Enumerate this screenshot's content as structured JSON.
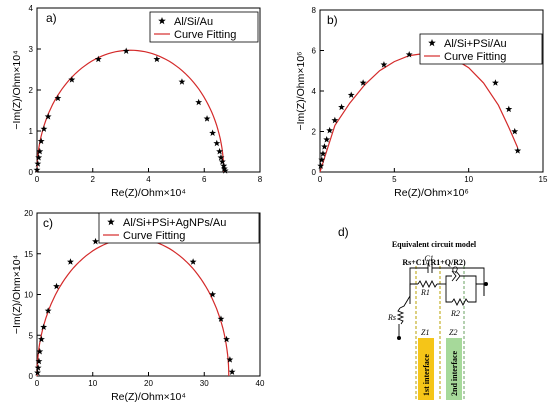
{
  "chart_data": [
    {
      "panel": "a)",
      "type": "scatter",
      "xlabel": "Re(Z)/Ohm×10⁴",
      "ylabel": "−Im(Z)/Ohm×10⁴",
      "xlim": [
        0,
        8
      ],
      "ylim": [
        0,
        4
      ],
      "xticks": [
        "0",
        "2",
        "4",
        "6",
        "8"
      ],
      "yticks": [
        "0",
        "1",
        "2",
        "3",
        "4"
      ],
      "legend": [
        "Al/Si/Au",
        "Curve Fitting"
      ],
      "legend_position": "top-right",
      "series": [
        {
          "name": "Al/Si/Au",
          "marker": "star",
          "x": [
            0.0,
            0.03,
            0.06,
            0.1,
            0.15,
            0.25,
            0.4,
            0.75,
            1.25,
            2.2,
            3.2,
            4.3,
            5.2,
            5.8,
            6.1,
            6.3,
            6.45,
            6.55,
            6.6,
            6.65,
            6.7,
            6.72,
            6.75
          ],
          "y": [
            0.05,
            0.2,
            0.35,
            0.5,
            0.75,
            1.05,
            1.35,
            1.8,
            2.25,
            2.75,
            2.95,
            2.75,
            2.2,
            1.7,
            1.3,
            0.95,
            0.7,
            0.5,
            0.35,
            0.25,
            0.15,
            0.08,
            0.03
          ]
        },
        {
          "name": "Curve Fitting",
          "line": true,
          "center": 3.35,
          "radius": 3.35,
          "peak": 2.97
        }
      ]
    },
    {
      "panel": "b)",
      "type": "scatter",
      "xlabel": "Re(Z)/Ohm×10⁶",
      "ylabel": "−Im(Z)/Ohm×10⁶",
      "xlim": [
        0,
        15
      ],
      "ylim": [
        0,
        8
      ],
      "xticks": [
        "0",
        "5",
        "10",
        "15"
      ],
      "yticks": [
        "0",
        "2",
        "4",
        "6",
        "8"
      ],
      "legend": [
        "Al/Si+PSi/Au",
        "Curve Fitting"
      ],
      "legend_position": "top-right",
      "series": [
        {
          "name": "Al/Si+PSi/Au",
          "marker": "star",
          "x": [
            0.05,
            0.12,
            0.2,
            0.3,
            0.45,
            0.65,
            1.0,
            1.45,
            2.1,
            2.9,
            4.3,
            6.0,
            8.1,
            9.9,
            11.8,
            12.7,
            13.1,
            13.3
          ],
          "y": [
            0.3,
            0.6,
            0.9,
            1.25,
            1.6,
            2.05,
            2.55,
            3.2,
            3.8,
            4.4,
            5.3,
            5.8,
            5.9,
            5.6,
            4.4,
            3.1,
            2.0,
            1.05
          ]
        },
        {
          "name": "Curve Fitting",
          "line": true,
          "points_x": [
            0,
            1,
            2,
            3,
            4,
            5,
            6,
            7,
            8,
            9,
            10,
            11,
            12,
            12.7,
            13.3
          ],
          "points_y": [
            0,
            2.3,
            3.4,
            4.3,
            5.0,
            5.45,
            5.75,
            5.85,
            5.82,
            5.6,
            5.15,
            4.4,
            3.3,
            2.2,
            1.2
          ]
        }
      ]
    },
    {
      "panel": "c)",
      "type": "scatter",
      "xlabel": "Re(Z)/Ohm×10⁴",
      "ylabel": "−Im(Z)/Ohm×10⁴",
      "xlim": [
        0,
        40
      ],
      "ylim": [
        0,
        20
      ],
      "xticks": [
        "0",
        "10",
        "20",
        "30",
        "40"
      ],
      "yticks": [
        "0",
        "5",
        "10",
        "15",
        "20"
      ],
      "legend": [
        "Al/Si+PSi+AgNPs/Au",
        "Curve Fitting"
      ],
      "legend_position": "top-right",
      "series": [
        {
          "name": "Al/Si+PSi+AgNPs/Au",
          "marker": "star",
          "x": [
            0.1,
            0.2,
            0.35,
            0.5,
            0.8,
            1.2,
            2.0,
            3.5,
            6.0,
            10.5,
            16.8,
            23.0,
            28.0,
            31.5,
            33.0,
            34.0,
            34.6,
            35.0
          ],
          "y": [
            0.4,
            1.0,
            1.8,
            3.0,
            4.5,
            6.0,
            8.0,
            11.0,
            14.0,
            16.5,
            17.5,
            16.8,
            14.0,
            10.0,
            7.0,
            4.5,
            2.0,
            0.5
          ]
        },
        {
          "name": "Curve Fitting",
          "line": true,
          "center": 17.2,
          "radius": 17.2,
          "peak": 16.9
        }
      ]
    }
  ],
  "circuit": {
    "panel": "d)",
    "title": "Equivalent circuit model",
    "equation": "Rs+C1/(R1+Q/R2)",
    "labels": {
      "c1": "C1",
      "q": "Q",
      "r1": "R1",
      "r2": "R2",
      "rs": "Rs",
      "z1": "Z1",
      "z2": "Z2"
    },
    "interface1": "1st interface",
    "interface2": "2nd interface",
    "colors": {
      "interface1": "#f5c518",
      "interface2": "#a6d99a"
    }
  },
  "colors": {
    "marker": "#000000",
    "fit": "#d42a2a"
  }
}
